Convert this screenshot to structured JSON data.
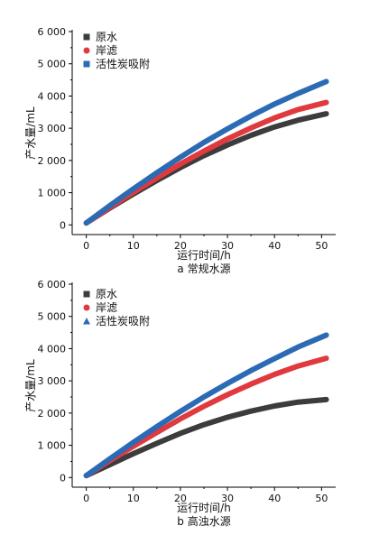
{
  "chart_data": [
    {
      "type": "line",
      "caption": "a 常规水源",
      "xlabel": "运行时间/h",
      "ylabel": "产水量/mL",
      "xlim": [
        -3,
        53
      ],
      "ylim": [
        -300,
        6000
      ],
      "xticks": [
        0,
        10,
        20,
        30,
        40,
        50
      ],
      "yticks": [
        0,
        1000,
        2000,
        3000,
        4000,
        5000,
        6000
      ],
      "ytick_labels": [
        "0",
        "1 000",
        "2 000",
        "3 000",
        "4 000",
        "5 000",
        "6 000"
      ],
      "legend_position": "top-left",
      "series": [
        {
          "name": "原水",
          "color": "#3c3c3c",
          "marker": "square",
          "x": [
            0,
            5,
            10,
            15,
            20,
            25,
            30,
            35,
            40,
            45,
            51
          ],
          "y": [
            60,
            520,
            960,
            1380,
            1780,
            2150,
            2480,
            2780,
            3040,
            3250,
            3450
          ]
        },
        {
          "name": "岸滤",
          "color": "#e0393e",
          "marker": "circle",
          "x": [
            0,
            5,
            10,
            15,
            20,
            25,
            30,
            35,
            40,
            45,
            51
          ],
          "y": [
            60,
            540,
            1010,
            1460,
            1890,
            2290,
            2670,
            3010,
            3320,
            3580,
            3800
          ]
        },
        {
          "name": "活性炭吸附",
          "color": "#2b6bb5",
          "marker": "square",
          "x": [
            0,
            5,
            10,
            15,
            20,
            25,
            30,
            35,
            40,
            45,
            51
          ],
          "y": [
            60,
            600,
            1120,
            1620,
            2100,
            2560,
            2980,
            3380,
            3750,
            4080,
            4450
          ]
        }
      ]
    },
    {
      "type": "line",
      "caption": "b 高浊水源",
      "xlabel": "运行时间/h",
      "ylabel": "产水量/mL",
      "xlim": [
        -3,
        53
      ],
      "ylim": [
        -300,
        6000
      ],
      "xticks": [
        0,
        10,
        20,
        30,
        40,
        50
      ],
      "yticks": [
        0,
        1000,
        2000,
        3000,
        4000,
        5000,
        6000
      ],
      "ytick_labels": [
        "0",
        "1 000",
        "2 000",
        "3 000",
        "4 000",
        "5 000",
        "6 000"
      ],
      "legend_position": "top-left",
      "series": [
        {
          "name": "原水",
          "color": "#3c3c3c",
          "marker": "square",
          "x": [
            0,
            5,
            10,
            15,
            20,
            25,
            30,
            35,
            40,
            45,
            51
          ],
          "y": [
            60,
            400,
            740,
            1060,
            1370,
            1640,
            1870,
            2060,
            2220,
            2340,
            2420
          ]
        },
        {
          "name": "岸滤",
          "color": "#e0393e",
          "marker": "circle",
          "x": [
            0,
            5,
            10,
            15,
            20,
            25,
            30,
            35,
            40,
            45,
            51
          ],
          "y": [
            60,
            520,
            970,
            1400,
            1820,
            2210,
            2570,
            2900,
            3200,
            3460,
            3700
          ]
        },
        {
          "name": "活性炭吸附",
          "color": "#2b6bb5",
          "marker": "triangle",
          "x": [
            0,
            5,
            10,
            15,
            20,
            25,
            30,
            35,
            40,
            45,
            51
          ],
          "y": [
            60,
            580,
            1090,
            1580,
            2050,
            2500,
            2920,
            3320,
            3690,
            4050,
            4420
          ]
        }
      ]
    }
  ]
}
